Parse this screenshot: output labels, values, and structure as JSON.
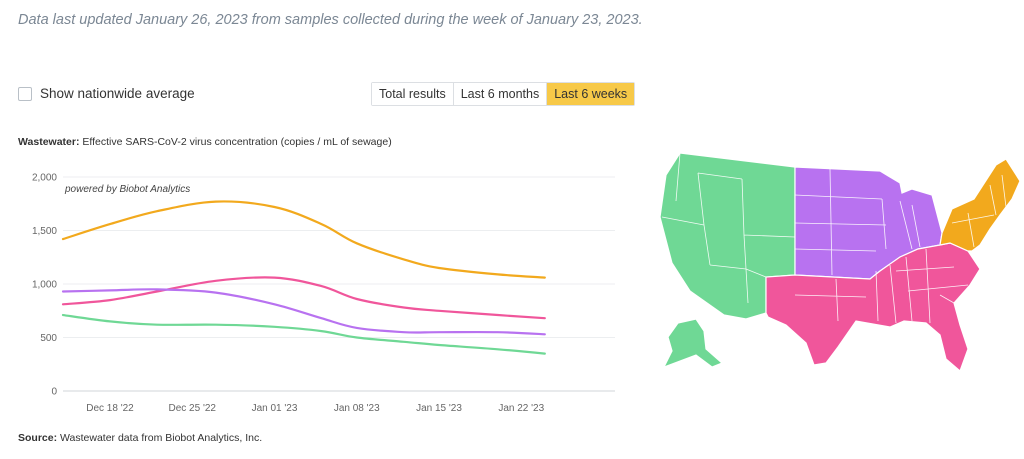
{
  "header": {
    "updated_text": "Data last updated January 26, 2023 from samples collected during the week of January 23, 2023."
  },
  "controls": {
    "nationwide_label": "Show nationwide average",
    "nationwide_checked": false,
    "ranges": [
      {
        "label": "Total results",
        "active": false
      },
      {
        "label": "Last 6 months",
        "active": false
      },
      {
        "label": "Last 6 weeks",
        "active": true
      }
    ]
  },
  "chart_title": {
    "bold": "Wastewater:",
    "text": " Effective SARS-CoV-2 virus concentration (copies / mL of sewage)"
  },
  "source": {
    "bold": "Source:",
    "text": " Wastewater data from Biobot Analytics, Inc."
  },
  "chart_data": {
    "type": "line",
    "credit": "powered by Biobot Analytics",
    "x_labels": [
      "Dec 18 '22",
      "Dec 25 '22",
      "Jan 01 '23",
      "Jan 08 '23",
      "Jan 15 '23",
      "Jan 22 '23"
    ],
    "x_start_label": "Dec 14 '22",
    "y_ticks": [
      0,
      500,
      1000,
      1500,
      2000
    ],
    "y_tick_labels": [
      "0",
      "500",
      "1,000",
      "1,500",
      "2,000"
    ],
    "ylim": [
      0,
      2000
    ],
    "grid": true,
    "series": [
      {
        "region": "northeast",
        "color": "#f2a91d",
        "points": [
          {
            "x": "Dec 14 '22",
            "y": 1420
          },
          {
            "x": "Dec 18 '22",
            "y": 1560
          },
          {
            "x": "Dec 22 '22",
            "y": 1680
          },
          {
            "x": "Dec 27 '22",
            "y": 1770
          },
          {
            "x": "Jan 01 '23",
            "y": 1720
          },
          {
            "x": "Jan 05 '23",
            "y": 1560
          },
          {
            "x": "Jan 08 '23",
            "y": 1380
          },
          {
            "x": "Jan 12 '23",
            "y": 1230
          },
          {
            "x": "Jan 15 '23",
            "y": 1150
          },
          {
            "x": "Jan 20 '23",
            "y": 1090
          },
          {
            "x": "Jan 24 '23",
            "y": 1060
          }
        ]
      },
      {
        "region": "south",
        "color": "#f0569b",
        "points": [
          {
            "x": "Dec 14 '22",
            "y": 810
          },
          {
            "x": "Dec 18 '22",
            "y": 850
          },
          {
            "x": "Dec 22 '22",
            "y": 930
          },
          {
            "x": "Dec 27 '22",
            "y": 1030
          },
          {
            "x": "Jan 01 '23",
            "y": 1060
          },
          {
            "x": "Jan 05 '23",
            "y": 980
          },
          {
            "x": "Jan 08 '23",
            "y": 860
          },
          {
            "x": "Jan 12 '23",
            "y": 780
          },
          {
            "x": "Jan 15 '23",
            "y": 750
          },
          {
            "x": "Jan 20 '23",
            "y": 710
          },
          {
            "x": "Jan 24 '23",
            "y": 680
          }
        ]
      },
      {
        "region": "midwest",
        "color": "#b872f0",
        "points": [
          {
            "x": "Dec 14 '22",
            "y": 930
          },
          {
            "x": "Dec 18 '22",
            "y": 940
          },
          {
            "x": "Dec 22 '22",
            "y": 950
          },
          {
            "x": "Dec 27 '22",
            "y": 920
          },
          {
            "x": "Jan 01 '23",
            "y": 810
          },
          {
            "x": "Jan 05 '23",
            "y": 680
          },
          {
            "x": "Jan 08 '23",
            "y": 590
          },
          {
            "x": "Jan 12 '23",
            "y": 550
          },
          {
            "x": "Jan 15 '23",
            "y": 550
          },
          {
            "x": "Jan 20 '23",
            "y": 550
          },
          {
            "x": "Jan 24 '23",
            "y": 530
          }
        ]
      },
      {
        "region": "west",
        "color": "#6fd895",
        "points": [
          {
            "x": "Dec 14 '22",
            "y": 710
          },
          {
            "x": "Dec 18 '22",
            "y": 650
          },
          {
            "x": "Dec 22 '22",
            "y": 620
          },
          {
            "x": "Dec 27 '22",
            "y": 620
          },
          {
            "x": "Jan 01 '23",
            "y": 600
          },
          {
            "x": "Jan 05 '23",
            "y": 560
          },
          {
            "x": "Jan 08 '23",
            "y": 500
          },
          {
            "x": "Jan 12 '23",
            "y": 460
          },
          {
            "x": "Jan 15 '23",
            "y": 430
          },
          {
            "x": "Jan 20 '23",
            "y": 390
          },
          {
            "x": "Jan 24 '23",
            "y": 350
          }
        ]
      }
    ]
  },
  "map": {
    "regions": [
      {
        "name": "west",
        "color": "#6fd895"
      },
      {
        "name": "midwest",
        "color": "#b872f0"
      },
      {
        "name": "south",
        "color": "#f0569b"
      },
      {
        "name": "northeast",
        "color": "#f2a91d"
      }
    ]
  }
}
